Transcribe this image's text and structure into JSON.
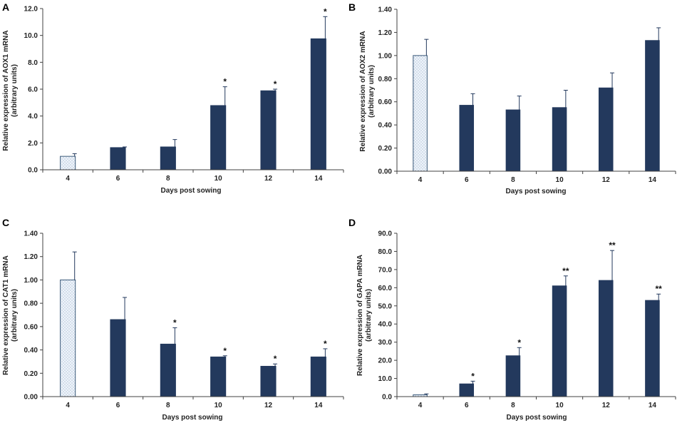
{
  "colors": {
    "control_fill": "#eef4fb",
    "control_stroke": "#3b5a7a",
    "treatment_fill": "#23395d",
    "axis": "#404040",
    "error_bar": "#23395d"
  },
  "chart_data": [
    {
      "type": "bar",
      "panel": "A",
      "categories": [
        "4",
        "6",
        "8",
        "10",
        "12",
        "14"
      ],
      "values": [
        1.0,
        1.65,
        1.7,
        4.78,
        5.88,
        9.75
      ],
      "errors": [
        0.2,
        0.05,
        0.55,
        1.4,
        0.12,
        1.65
      ],
      "significance": [
        "",
        "",
        "",
        "*",
        "*",
        "*"
      ],
      "control_index": 0,
      "xlabel": "Days post sowing",
      "ylabel": [
        "Relative expression of AOX1 mRNA",
        "(arbitrary units)"
      ],
      "ylim": [
        0,
        12
      ],
      "yticks": [
        0,
        2,
        4,
        6,
        8,
        10,
        12
      ],
      "ytick_labels": [
        "0.0",
        "2.0",
        "4.0",
        "6.0",
        "8.0",
        "10.0",
        "12.0"
      ]
    },
    {
      "type": "bar",
      "panel": "B",
      "categories": [
        "4",
        "6",
        "8",
        "10",
        "12",
        "14"
      ],
      "values": [
        1.0,
        0.57,
        0.53,
        0.55,
        0.72,
        1.13
      ],
      "errors": [
        0.14,
        0.1,
        0.12,
        0.15,
        0.13,
        0.11
      ],
      "significance": [
        "",
        "",
        "",
        "",
        "",
        ""
      ],
      "control_index": 0,
      "xlabel": "Days post sowing",
      "ylabel": [
        "Relative expression of AOX2 mRNA",
        "(arbitrary units)"
      ],
      "ylim": [
        0,
        1.4
      ],
      "yticks": [
        0,
        0.2,
        0.4,
        0.6,
        0.8,
        1.0,
        1.2,
        1.4
      ],
      "ytick_labels": [
        "0.00",
        "0.20",
        "0.40",
        "0.60",
        "0.80",
        "1.00",
        "1.20",
        "1.40"
      ]
    },
    {
      "type": "bar",
      "panel": "C",
      "categories": [
        "4",
        "6",
        "8",
        "10",
        "12",
        "14"
      ],
      "values": [
        1.0,
        0.66,
        0.45,
        0.34,
        0.26,
        0.34
      ],
      "errors": [
        0.24,
        0.19,
        0.14,
        0.01,
        0.02,
        0.07
      ],
      "significance": [
        "",
        "",
        "*",
        "*",
        "*",
        "*"
      ],
      "control_index": 0,
      "xlabel": "Days post sowing",
      "ylabel": [
        "Relative expression of CAT1 mRNA",
        "(arbitrary units)"
      ],
      "ylim": [
        0,
        1.4
      ],
      "yticks": [
        0,
        0.2,
        0.4,
        0.6,
        0.8,
        1.0,
        1.2,
        1.4
      ],
      "ytick_labels": [
        "0.00",
        "0.20",
        "0.40",
        "0.60",
        "0.80",
        "1.00",
        "1.20",
        "1.40"
      ]
    },
    {
      "type": "bar",
      "panel": "D",
      "categories": [
        "4",
        "6",
        "8",
        "10",
        "12",
        "14"
      ],
      "values": [
        1.0,
        7.0,
        22.5,
        61.0,
        64.0,
        53.0
      ],
      "errors": [
        0.5,
        1.5,
        4.5,
        5.5,
        16.5,
        3.5
      ],
      "significance": [
        "",
        "*",
        "*",
        "**",
        "**",
        "**"
      ],
      "control_index": 0,
      "xlabel": "Days post sowing",
      "ylabel": [
        "Relative expression of GAPA mRNA",
        "(arbitrary units)"
      ],
      "ylim": [
        0,
        90
      ],
      "yticks": [
        0,
        10,
        20,
        30,
        40,
        50,
        60,
        70,
        80,
        90
      ],
      "ytick_labels": [
        "0.0",
        "10.0",
        "20.0",
        "30.0",
        "40.0",
        "50.0",
        "60.0",
        "70.0",
        "80.0",
        "90.0"
      ]
    }
  ]
}
